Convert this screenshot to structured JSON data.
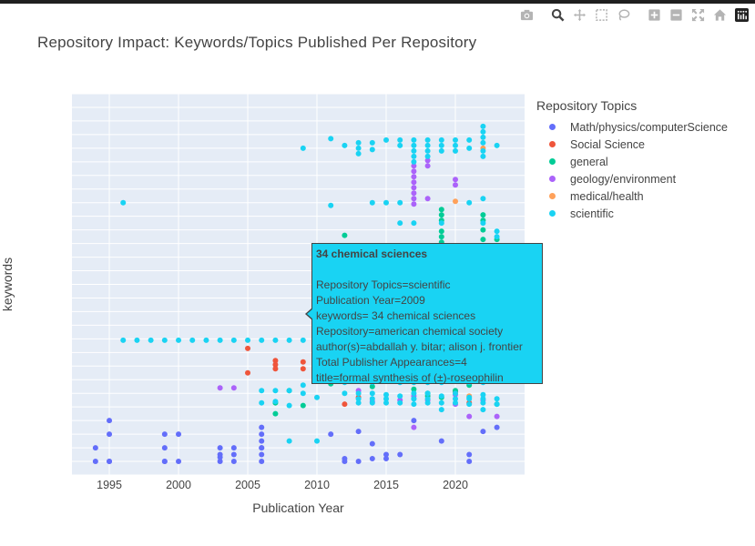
{
  "title": "Repository Impact: Keywords/Topics Published Per Repository",
  "modebar": [
    "camera-icon",
    "zoom-icon",
    "pan-icon",
    "box-select-icon",
    "lasso-icon",
    "zoom-in-icon",
    "zoom-out-icon",
    "autoscale-icon",
    "reset-axes-icon",
    "plotly-logo-icon"
  ],
  "colors": {
    "plot_bg": "#e5ecf6",
    "grid": "#ffffff",
    "Math/physics/computerScience": "#636efa",
    "Social Science": "#ef553b",
    "general": "#00cc96",
    "geology/environment": "#ab63fa",
    "medical/health": "#ffa15a",
    "scientific": "#19d3f3"
  },
  "tooltip": {
    "header": "34 chemical sciences",
    "lines": [
      "Repository Topics=scientific",
      "Publication Year=2009",
      "keywords= 34 chemical sciences",
      "Repository=american chemical society",
      "author(s)=abdallah y. bitar; alison j. frontier",
      "Total Publisher Appearances=4",
      "title=formal synthesis of (±)-roseophilin"
    ],
    "color": "#19d3f3"
  },
  "chart_data": {
    "type": "scatter",
    "title": "Repository Impact: Keywords/Topics Published Per Repository",
    "xlabel": "Publication Year",
    "ylabel": "keywords",
    "xlim": [
      1992.3,
      2025
    ],
    "xticks": [
      1995,
      2000,
      2005,
      2010,
      2015,
      2020
    ],
    "ylim": [
      -1,
      27
    ],
    "yticks_hidden": true,
    "grid": true,
    "legend_title": "Repository Topics",
    "legend_position": "right",
    "series": [
      {
        "name": "Math/physics/computerScience",
        "x": [
          1994,
          1994,
          1995,
          1995,
          1995,
          1995,
          1999,
          1999,
          1999,
          1999,
          2000,
          2000,
          2003,
          2003,
          2003,
          2003,
          2004,
          2004,
          2004,
          2006,
          2006,
          2006,
          2006,
          2006,
          2006,
          2006,
          2011,
          2012,
          2012,
          2013,
          2013,
          2014,
          2014,
          2015,
          2015,
          2016,
          2017,
          2019,
          2021,
          2021,
          2022,
          2023
        ],
        "y": [
          1,
          0,
          0,
          2,
          3,
          0,
          2,
          1,
          0,
          0,
          2,
          0,
          1,
          0.5,
          0,
          0.3,
          0,
          0.5,
          1,
          0,
          0.5,
          1,
          1.5,
          2,
          2.5,
          1,
          2,
          0,
          0.2,
          2.2,
          0,
          1.3,
          0.2,
          0.5,
          0.2,
          0.5,
          3,
          1.5,
          0,
          0.5,
          2.2,
          2.5
        ],
        "color": "#636efa"
      },
      {
        "name": "Social Science",
        "x": [
          2005,
          2005,
          2007,
          2007,
          2007,
          2009,
          2009,
          2012,
          2013,
          2020,
          2021
        ],
        "y": [
          8.3,
          6.5,
          7.4,
          7.1,
          6.8,
          7.3,
          6.8,
          4.2,
          4.7,
          5.1,
          4.3
        ],
        "color": "#ef553b"
      },
      {
        "name": "general",
        "x": [
          2007,
          2007,
          2008,
          2009,
          2011,
          2012,
          2012,
          2013,
          2014,
          2017,
          2018,
          2018,
          2019,
          2019,
          2019,
          2019,
          2019,
          2019,
          2019,
          2019,
          2020,
          2021,
          2022,
          2022,
          2022,
          2022,
          2023,
          2023,
          2023,
          2023,
          2023
        ],
        "y": [
          4.3,
          3.5,
          5.2,
          4.1,
          5.7,
          16.6,
          14.5,
          6.2,
          5.5,
          5.3,
          5.0,
          4.8,
          18.5,
          18.1,
          17.7,
          16.9,
          16.5,
          16.1,
          15.7,
          4.7,
          5.2,
          5.6,
          18.1,
          17.7,
          17.0,
          16.3,
          16.3,
          15.4,
          15.0,
          14.6,
          4.2
        ],
        "color": "#00cc96"
      },
      {
        "name": "geology/environment",
        "x": [
          2003,
          2004,
          2013,
          2014,
          2016,
          2017,
          2017,
          2017,
          2017,
          2017,
          2017,
          2017,
          2017,
          2017,
          2017,
          2018,
          2018,
          2018,
          2018,
          2020,
          2020,
          2020,
          2020,
          2021,
          2022,
          2023
        ],
        "y": [
          5.4,
          5.4,
          5.2,
          4.4,
          4.5,
          21.7,
          21.3,
          20.9,
          20.5,
          20.1,
          19.7,
          19.3,
          18.9,
          4.8,
          2.5,
          22.1,
          21.7,
          19.3,
          4.5,
          20.7,
          20.3,
          4.9,
          4.2,
          3.3,
          4.5,
          3.3
        ],
        "color": "#ab63fa"
      },
      {
        "name": "medical/health",
        "x": [
          2020,
          2021,
          2022
        ],
        "y": [
          19.1,
          4.8,
          23.0
        ],
        "color": "#ffa15a"
      },
      {
        "name": "scientific",
        "x": [
          1996,
          1997,
          1998,
          1999,
          2000,
          2001,
          2002,
          2003,
          2004,
          2005,
          2006,
          2007,
          2008,
          2009,
          2010,
          2011,
          1996,
          2009,
          2011,
          2011,
          2012,
          2013,
          2013,
          2013,
          2014,
          2014,
          2014,
          2015,
          2015,
          2016,
          2016,
          2016,
          2017,
          2017,
          2017,
          2017,
          2017,
          2018,
          2018,
          2018,
          2018,
          2019,
          2019,
          2019,
          2020,
          2020,
          2020,
          2021,
          2021,
          2021,
          2022,
          2022,
          2022,
          2022,
          2022,
          2022,
          2022,
          2023,
          2023,
          2023,
          2006,
          2006,
          2007,
          2007,
          2008,
          2008,
          2009,
          2009,
          2010,
          2012,
          2013,
          2013,
          2014,
          2014,
          2015,
          2015,
          2016,
          2016,
          2017,
          2017,
          2017,
          2018,
          2018,
          2019,
          2019,
          2019,
          2020,
          2020,
          2021,
          2021,
          2022,
          2022,
          2022,
          2023,
          2023,
          2008,
          2010,
          2013,
          2014,
          2015,
          2017,
          2018,
          2020,
          2021,
          2022,
          2012,
          2014,
          2016,
          2017,
          2018,
          2019,
          2021,
          2022,
          2014,
          2016,
          2017,
          2019,
          2022
        ],
        "y": [
          8.9,
          8.9,
          8.9,
          8.9,
          8.9,
          8.9,
          8.9,
          8.9,
          8.9,
          8.9,
          8.9,
          8.9,
          8.9,
          8.9,
          8.9,
          8.9,
          19.0,
          23.0,
          23.7,
          18.8,
          23.2,
          23.4,
          23.0,
          22.6,
          23.4,
          22.9,
          19.0,
          19.0,
          23.6,
          19.0,
          23.6,
          23.2,
          23.6,
          23.2,
          22.8,
          22.4,
          22.0,
          23.6,
          23.2,
          22.8,
          22.4,
          23.6,
          23.2,
          22.8,
          23.6,
          23.2,
          22.8,
          23.6,
          23.0,
          19.0,
          24.6,
          24.2,
          23.8,
          23.4,
          22.8,
          22.4,
          19.3,
          23.2,
          16.9,
          16.5,
          5.2,
          4.3,
          5.2,
          4.4,
          5.2,
          4.1,
          5.6,
          5.0,
          4.7,
          5.0,
          5.0,
          4.3,
          5.0,
          4.3,
          4.9,
          4.3,
          4.8,
          4.3,
          5.0,
          4.6,
          4.2,
          5.0,
          4.3,
          4.8,
          4.3,
          3.8,
          5.0,
          4.3,
          4.7,
          4.2,
          4.9,
          4.3,
          3.8,
          4.6,
          4.2,
          1.5,
          1.5,
          4.6,
          4.6,
          4.6,
          4.6,
          4.6,
          4.6,
          4.6,
          4.6,
          5.8,
          5.8,
          5.8,
          5.8,
          5.8,
          5.8,
          5.8,
          5.8,
          15.6,
          17.5,
          17.5,
          17.5,
          17.5
        ],
        "color": "#19d3f3"
      }
    ]
  }
}
